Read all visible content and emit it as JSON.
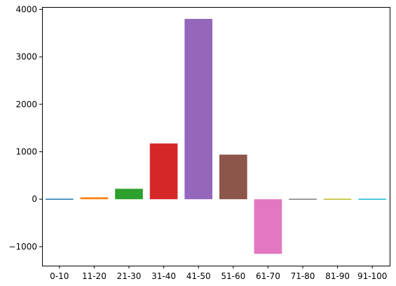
{
  "chart_data": {
    "type": "bar",
    "title": "",
    "xlabel": "",
    "ylabel": "",
    "categories": [
      "0-10",
      "11-20",
      "21-30",
      "31-40",
      "41-50",
      "51-60",
      "61-70",
      "71-80",
      "81-90",
      "91-100"
    ],
    "values": [
      10,
      40,
      220,
      1175,
      3800,
      940,
      -1150,
      -20,
      0,
      0
    ],
    "colors": [
      "#1f77b4",
      "#ff7f0e",
      "#2ca02c",
      "#d62728",
      "#9467bd",
      "#8c564b",
      "#e377c2",
      "#7f7f7f",
      "#bcbd22",
      "#17becf"
    ],
    "ylim": [
      -1400,
      4050
    ],
    "yticks": [
      -1000,
      0,
      1000,
      2000,
      3000,
      4000
    ],
    "ytick_labels": [
      "−1000",
      "0",
      "1000",
      "2000",
      "3000",
      "4000"
    ],
    "grid": false,
    "legend": "none"
  }
}
